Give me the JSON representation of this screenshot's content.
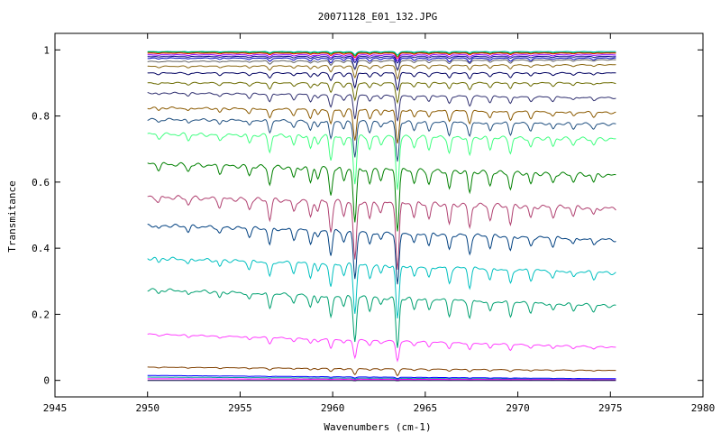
{
  "chart_data": {
    "type": "line",
    "title": "20071128_E01_132.JPG",
    "xlabel": "Wavenumbers (cm-1)",
    "ylabel": "Transmitance",
    "xlim": [
      2945,
      2980
    ],
    "ylim": [
      -0.05,
      1.05
    ],
    "x_ticks": [
      2945,
      2950,
      2955,
      2960,
      2965,
      2970,
      2975,
      2980
    ],
    "x_tick_labels": [
      "2945",
      "2950",
      "2955",
      "2960",
      "2965",
      "2970",
      "2975",
      "2980"
    ],
    "y_ticks": [
      0,
      0.2,
      0.4,
      0.6,
      0.8,
      1
    ],
    "y_tick_labels": [
      "0",
      "0.2",
      "0.4",
      "0.6",
      "0.8",
      "1"
    ],
    "grid": false,
    "legend": "none",
    "x_range": [
      2950,
      2975.3
    ],
    "absorption_lines": [
      {
        "x": 2950.6,
        "depth": 0.08
      },
      {
        "x": 2952.2,
        "depth": 0.1
      },
      {
        "x": 2953.9,
        "depth": 0.12
      },
      {
        "x": 2955.5,
        "depth": 0.15
      },
      {
        "x": 2956.6,
        "depth": 0.3
      },
      {
        "x": 2957.9,
        "depth": 0.18
      },
      {
        "x": 2958.8,
        "depth": 0.25
      },
      {
        "x": 2959.2,
        "depth": 0.15
      },
      {
        "x": 2959.9,
        "depth": 0.45
      },
      {
        "x": 2960.6,
        "depth": 0.2
      },
      {
        "x": 2961.2,
        "depth": 0.9
      },
      {
        "x": 2962.0,
        "depth": 0.25
      },
      {
        "x": 2962.6,
        "depth": 0.15
      },
      {
        "x": 2963.5,
        "depth": 1.0
      },
      {
        "x": 2964.4,
        "depth": 0.2
      },
      {
        "x": 2965.2,
        "depth": 0.22
      },
      {
        "x": 2966.3,
        "depth": 0.3
      },
      {
        "x": 2967.4,
        "depth": 0.35
      },
      {
        "x": 2968.5,
        "depth": 0.22
      },
      {
        "x": 2969.6,
        "depth": 0.28
      },
      {
        "x": 2970.7,
        "depth": 0.18
      },
      {
        "x": 2971.9,
        "depth": 0.15
      },
      {
        "x": 2973.0,
        "depth": 0.12
      },
      {
        "x": 2974.1,
        "depth": 0.12
      }
    ],
    "series": [
      {
        "color": "#00c0c0",
        "start": 0.995,
        "end": 0.995,
        "scale": 0.01
      },
      {
        "color": "#00a000",
        "start": 0.993,
        "end": 0.992,
        "scale": 0.012
      },
      {
        "color": "#ff0000",
        "start": 0.99,
        "end": 0.99,
        "scale": 0.015
      },
      {
        "color": "#8000ff",
        "start": 0.985,
        "end": 0.985,
        "scale": 0.018
      },
      {
        "color": "#000080",
        "start": 0.98,
        "end": 0.98,
        "scale": 0.02
      },
      {
        "color": "#0000c0",
        "start": 0.975,
        "end": 0.975,
        "scale": 0.035
      },
      {
        "color": "#606060",
        "start": 0.965,
        "end": 0.97,
        "scale": 0.03
      },
      {
        "color": "#8b6914",
        "start": 0.95,
        "end": 0.955,
        "scale": 0.04
      },
      {
        "color": "#000060",
        "start": 0.93,
        "end": 0.93,
        "scale": 0.05
      },
      {
        "color": "#6b6b00",
        "start": 0.9,
        "end": 0.9,
        "scale": 0.06
      },
      {
        "color": "#303070",
        "start": 0.87,
        "end": 0.855,
        "scale": 0.08
      },
      {
        "color": "#8b5a00",
        "start": 0.825,
        "end": 0.81,
        "scale": 0.1
      },
      {
        "color": "#205080",
        "start": 0.79,
        "end": 0.775,
        "scale": 0.12
      },
      {
        "color": "#40ff80",
        "start": 0.745,
        "end": 0.73,
        "scale": 0.16
      },
      {
        "color": "#008000",
        "start": 0.655,
        "end": 0.62,
        "scale": 0.18
      },
      {
        "color": "#b04070",
        "start": 0.555,
        "end": 0.52,
        "scale": 0.2
      },
      {
        "color": "#004080",
        "start": 0.47,
        "end": 0.425,
        "scale": 0.16
      },
      {
        "color": "#00c0c0",
        "start": 0.37,
        "end": 0.325,
        "scale": 0.16
      },
      {
        "color": "#00a070",
        "start": 0.275,
        "end": 0.225,
        "scale": 0.15
      },
      {
        "color": "#ff40ff",
        "start": 0.14,
        "end": 0.1,
        "scale": 0.06
      },
      {
        "color": "#804000",
        "start": 0.04,
        "end": 0.03,
        "scale": 0.02
      },
      {
        "color": "#0000ff",
        "start": 0.015,
        "end": 0.005,
        "scale": 0.004
      },
      {
        "color": "#00a0a0",
        "start": 0.01,
        "end": 0.003,
        "scale": 0.003
      },
      {
        "color": "#ff00ff",
        "start": 0.005,
        "end": 0.002,
        "scale": 0.002
      },
      {
        "color": "#000040",
        "start": 0.0,
        "end": 0.0,
        "scale": 0.001
      }
    ]
  }
}
